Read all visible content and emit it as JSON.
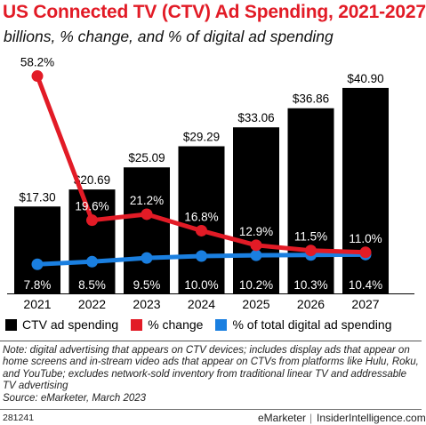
{
  "header": {
    "title": "US Connected TV (CTV) Ad Spending, 2021-2027",
    "subtitle": "billions, % change, and % of digital ad spending"
  },
  "chart_data": {
    "type": "bar",
    "categories": [
      "2021",
      "2022",
      "2023",
      "2024",
      "2025",
      "2026",
      "2027"
    ],
    "series": [
      {
        "name": "CTV ad spending",
        "type": "bar",
        "color": "#000000",
        "values": [
          17.3,
          20.69,
          25.09,
          29.29,
          33.06,
          36.86,
          40.9
        ],
        "labels": [
          "$17.30",
          "$20.69",
          "$25.09",
          "$29.29",
          "$33.06",
          "$36.86",
          "$40.90"
        ]
      },
      {
        "name": "% change",
        "type": "line",
        "color": "#e21b26",
        "values": [
          58.2,
          19.6,
          21.2,
          16.8,
          12.9,
          11.5,
          11.0
        ],
        "labels": [
          "58.2%",
          "19.6%",
          "21.2%",
          "16.8%",
          "12.9%",
          "11.5%",
          "11.0%"
        ]
      },
      {
        "name": "% of total digital ad spending",
        "type": "line",
        "color": "#1a7fe0",
        "values": [
          7.8,
          8.5,
          9.5,
          10.0,
          10.2,
          10.3,
          10.4
        ],
        "labels": [
          "7.8%",
          "8.5%",
          "9.5%",
          "10.0%",
          "10.2%",
          "10.3%",
          "10.4%"
        ]
      }
    ]
  },
  "note": "Note: digital advertising that appears on CTV devices; includes display ads that appear on home screens and in-stream video ads that appear on CTVs from platforms like Hulu, Roku, and YouTube; excludes network-sold inventory from traditional linear TV and addressable TV advertising",
  "source": "Source: eMarketer, March 2023",
  "footer": {
    "chart_id": "281241",
    "brand": "eMarketer",
    "separator": "|",
    "site": "InsiderIntelligence.com"
  }
}
